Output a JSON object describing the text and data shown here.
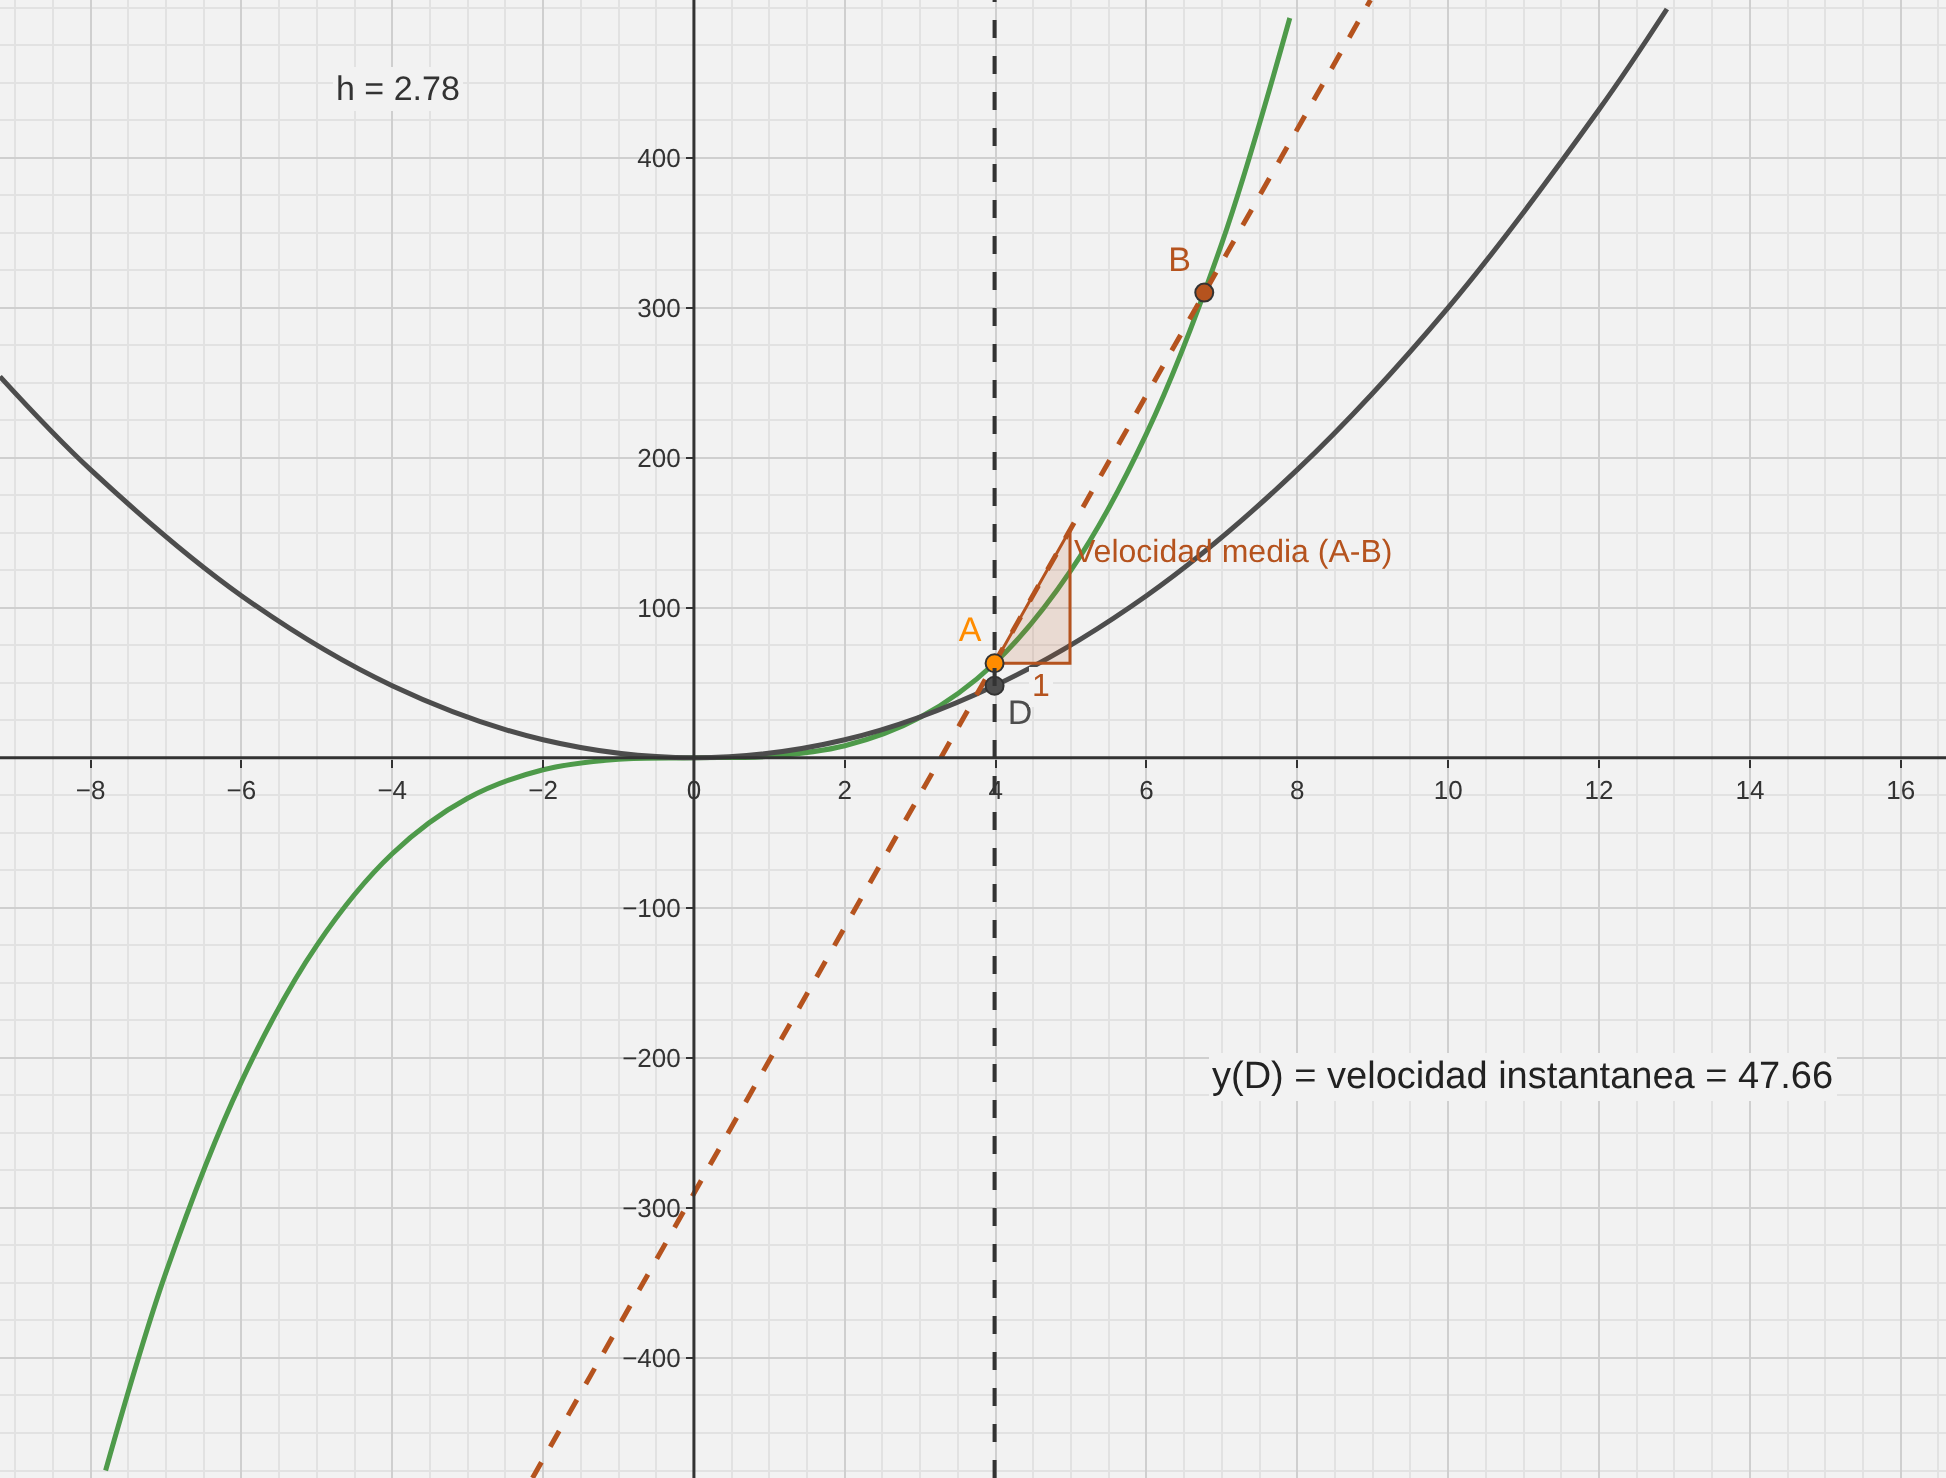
{
  "chart_data": {
    "type": "line",
    "xlim": [
      -9.2,
      16.6
    ],
    "ylim": [
      -480,
      505
    ],
    "xticks": [
      {
        "value": -8,
        "label": "−8"
      },
      {
        "value": -6,
        "label": "−6"
      },
      {
        "value": -4,
        "label": "−4"
      },
      {
        "value": -2,
        "label": "−2"
      },
      0,
      2,
      4,
      6,
      8,
      10,
      12,
      14,
      16
    ],
    "yticks": [
      {
        "value": -400,
        "label": "−400"
      },
      {
        "value": -300,
        "label": "−300"
      },
      {
        "value": -200,
        "label": "−200"
      },
      {
        "value": -100,
        "label": "−100"
      },
      100,
      200,
      300,
      400
    ],
    "grid": true,
    "legend": false,
    "marker": "none",
    "series": [
      {
        "color": "#4e9a4a",
        "x": [
          -7.8,
          -7,
          -6,
          -5,
          -4,
          -3,
          -2,
          -1,
          0,
          1,
          2,
          3,
          3.986,
          5,
          6,
          7,
          7.9
        ],
        "values": [
          -475,
          -343,
          -216,
          -125,
          -64,
          -27,
          -8,
          -1,
          0,
          1,
          8,
          27,
          63,
          125,
          216,
          343,
          493
        ]
      },
      {
        "color": "#4d4d4d",
        "x": [
          -9.2,
          -8,
          -6,
          -4,
          -2,
          0,
          2,
          3.986,
          6,
          8,
          10,
          12,
          12.9
        ],
        "values": [
          254,
          192,
          108,
          48,
          12,
          0,
          12,
          48,
          108,
          192,
          300,
          432,
          499
        ]
      },
      {
        "color": "#b5531e",
        "line_style": "dashed",
        "x": [
          -2.14,
          8.97
        ],
        "values": [
          -480,
          505
        ]
      },
      {
        "type": "area",
        "name": "Velocidad media (A-B)",
        "color": "#b5531e",
        "x": [
          3.986,
          4.986,
          4.986,
          3.986
        ],
        "values": [
          63,
          63,
          152,
          63
        ]
      },
      {
        "type": "scatter",
        "name": "A",
        "marker": "circle",
        "color": "#ff8c00",
        "x": [
          3.986
        ],
        "values": [
          63
        ]
      },
      {
        "type": "scatter",
        "name": "D",
        "marker": "circle",
        "color": "#4d4d4d",
        "x": [
          3.986
        ],
        "values": [
          48
        ]
      },
      {
        "type": "scatter",
        "name": "B",
        "marker": "circle",
        "color": "#b5531e",
        "x": [
          6.766
        ],
        "values": [
          310
        ]
      }
    ],
    "ref_lines": [
      {
        "axis": "x",
        "value": 3.986,
        "color": "#333333",
        "line_style": "dashed"
      }
    ],
    "annotations": [
      "h = 2.78",
      "1",
      "y(D) = velocidad instantanea = 47.66"
    ]
  }
}
